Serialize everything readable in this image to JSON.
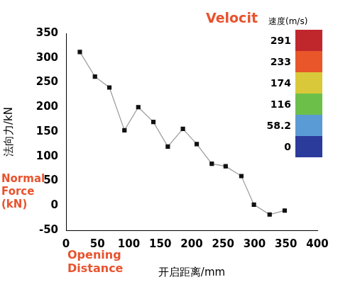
{
  "chart_data": {
    "type": "line",
    "x_label": "开启距离/mm",
    "y_label": "法向力/kN",
    "x": [
      22,
      46,
      69,
      93,
      115,
      139,
      162,
      186,
      208,
      232,
      254,
      279,
      299,
      324,
      348
    ],
    "series": [
      {
        "name": "法向力",
        "color": "#9a9a9a",
        "values": [
          312,
          262,
          240,
          153,
          200,
          170,
          120,
          156,
          125,
          85,
          80,
          60,
          2,
          -18,
          -10
        ],
        "marker": "square",
        "line_style": "solid"
      }
    ],
    "xlim": [
      0,
      400
    ],
    "xticks": [
      0,
      50,
      100,
      150,
      200,
      250,
      300,
      350,
      400
    ],
    "ylim": [
      -50,
      350
    ],
    "yticks": [
      -50,
      0,
      50,
      100,
      150,
      200,
      250,
      300,
      350
    ],
    "grid": false,
    "color_bar": {
      "title": "速度(m/s)",
      "ticks": [
        291,
        233,
        174,
        116,
        58.2,
        0
      ],
      "colors": [
        "#c0272d",
        "#e8562a",
        "#d9c93a",
        "#6cc04a",
        "#5b9bd5",
        "#2b3b9c"
      ]
    },
    "annotations": [
      "Velocit",
      "Normal Force (kN)",
      "Opening Distance"
    ]
  }
}
